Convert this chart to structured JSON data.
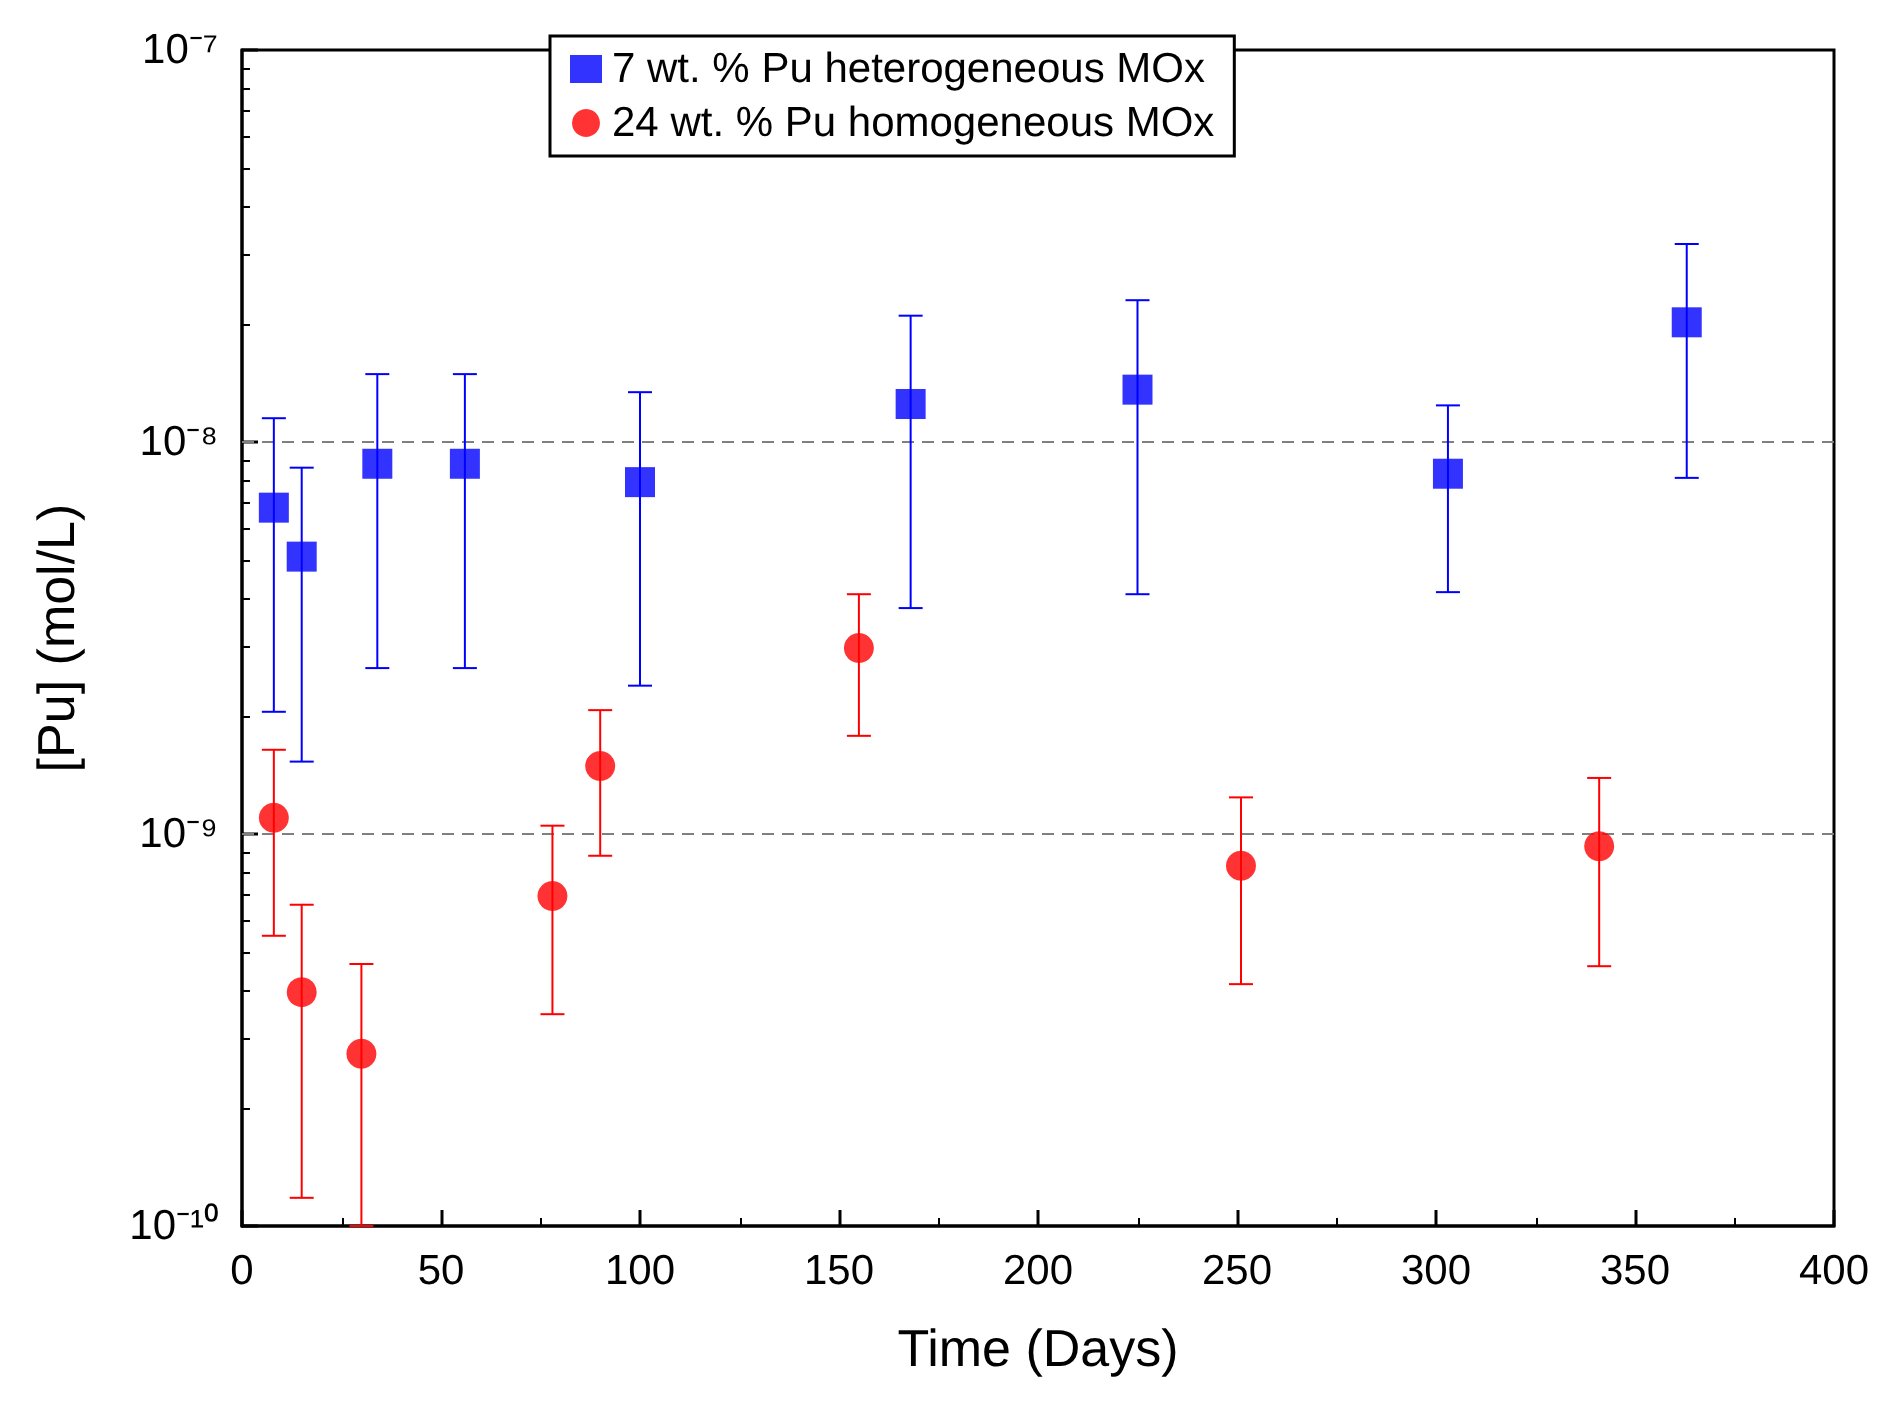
{
  "chart_data": {
    "type": "scatter",
    "xlabel": "Time (Days)",
    "ylabel": "[Pu] (mol/L)",
    "log": "y",
    "xlim": [
      0,
      400
    ],
    "xticks": [
      0,
      50,
      100,
      150,
      200,
      250,
      300,
      350,
      400
    ],
    "ylim": [
      1e-10,
      1e-07
    ],
    "yticks": [
      {
        "value": 1e-10,
        "label": "10⁻¹⁰"
      },
      {
        "value": 1e-09,
        "label": "10⁻⁹"
      },
      {
        "value": 1e-08,
        "label": "10⁻⁸"
      },
      {
        "value": 1e-07,
        "label": "10⁻⁷"
      }
    ],
    "grid": false,
    "legend": "top",
    "ref_lines": [
      {
        "axis": "y",
        "value": 1e-08,
        "color": "#808080",
        "line_style": "dashed"
      },
      {
        "axis": "y",
        "value": 1e-09,
        "color": "#808080",
        "line_style": "dashed"
      }
    ],
    "series": [
      {
        "name": "7 wt. % Pu heterogeneous MOx",
        "color": "#0000ff",
        "marker": "square",
        "x": [
          8,
          15,
          34,
          56,
          100,
          168,
          225,
          303,
          363
        ],
        "values": [
          6.8e-09,
          5.1e-09,
          8.8e-09,
          8.8e-09,
          7.9e-09,
          1.25e-08,
          1.36e-08,
          8.3e-09,
          2.02e-08
        ],
        "errors": [
          [
            2.05e-09,
            1.15e-08
          ],
          [
            1.53e-09,
            8.6e-09
          ],
          [
            2.65e-09,
            1.49e-08
          ],
          [
            2.65e-09,
            1.49e-08
          ],
          [
            2.39e-09,
            1.34e-08
          ],
          [
            3.77e-09,
            2.1e-08
          ],
          [
            4.09e-09,
            2.3e-08
          ],
          [
            4.14e-09,
            1.24e-08
          ],
          [
            8.1e-09,
            3.2e-08
          ]
        ]
      },
      {
        "name": "24 wt. % Pu homogeneous MOx",
        "color": "#ff0000",
        "marker": "circle",
        "x": [
          8,
          15,
          30,
          78,
          90,
          155,
          251,
          341
        ],
        "values": [
          1.1e-09,
          3.95e-10,
          2.75e-10,
          6.95e-10,
          1.49e-09,
          2.98e-09,
          8.3e-10,
          9.3e-10
        ],
        "errors": [
          [
            5.5e-10,
            1.64e-09
          ],
          [
            1.18e-10,
            6.6e-10
          ],
          [
            1e-10,
            4.66e-10
          ],
          [
            3.47e-10,
            1.05e-09
          ],
          [
            8.8e-10,
            2.07e-09
          ],
          [
            1.78e-09,
            4.09e-09
          ],
          [
            4.14e-10,
            1.24e-09
          ],
          [
            4.6e-10,
            1.39e-09
          ]
        ]
      }
    ]
  }
}
